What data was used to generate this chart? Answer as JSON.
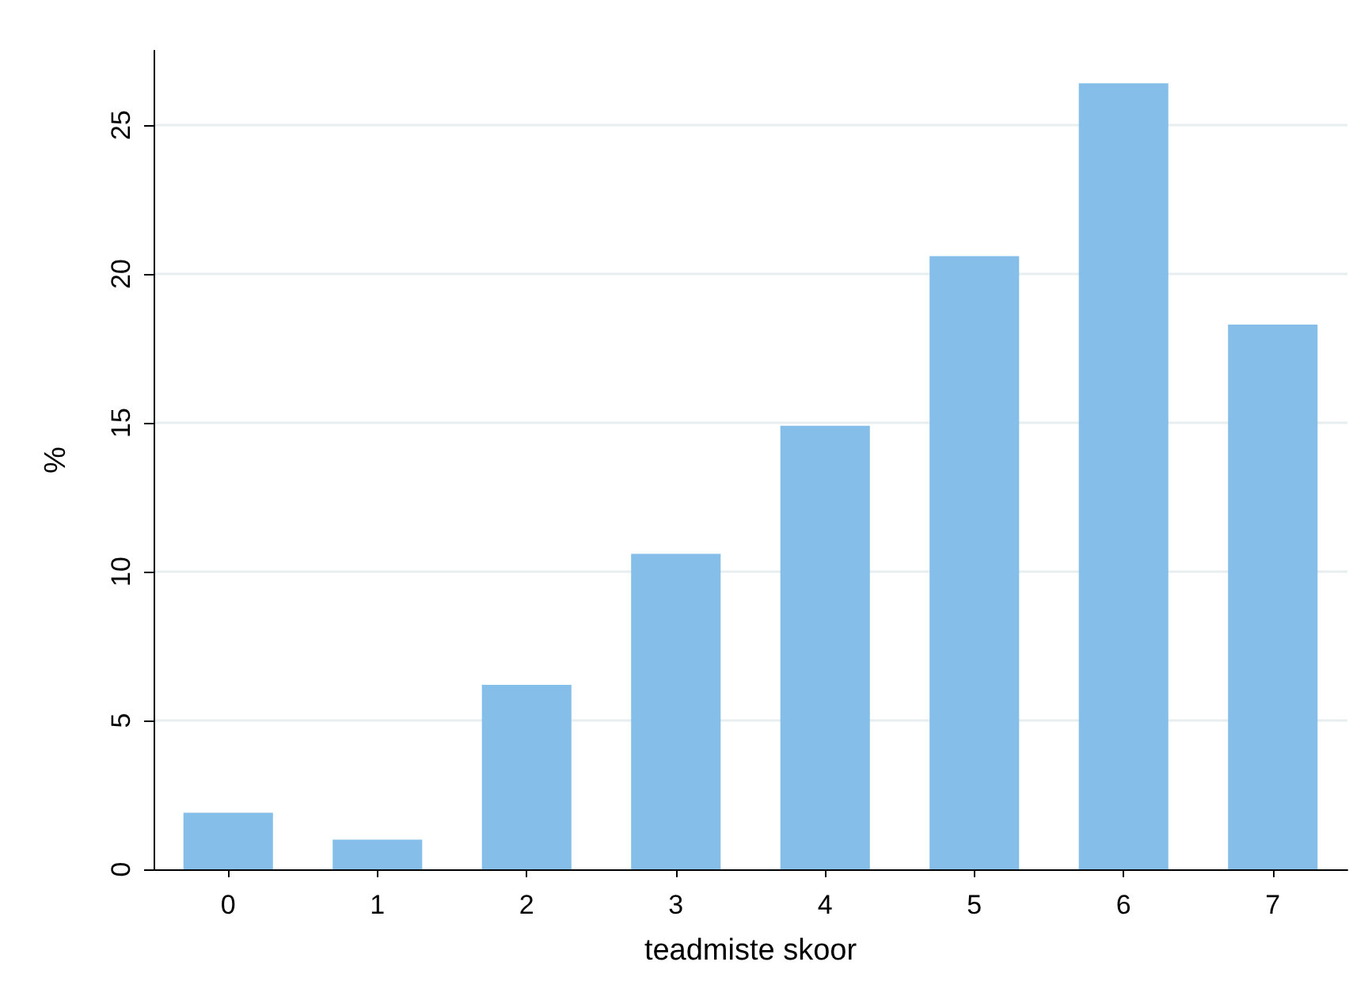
{
  "chart_data": {
    "type": "bar",
    "xlabel": "teadmiste skoor",
    "ylabel": "%",
    "categories": [
      "0",
      "1",
      "2",
      "3",
      "4",
      "5",
      "6",
      "7"
    ],
    "values": [
      1.9,
      1.0,
      6.2,
      10.6,
      14.9,
      20.6,
      26.4,
      18.3
    ],
    "color": "#85bfe9",
    "ylim": [
      0,
      27.5
    ],
    "yticks": [
      0,
      5,
      10,
      15,
      20,
      25
    ],
    "grid": "y"
  }
}
